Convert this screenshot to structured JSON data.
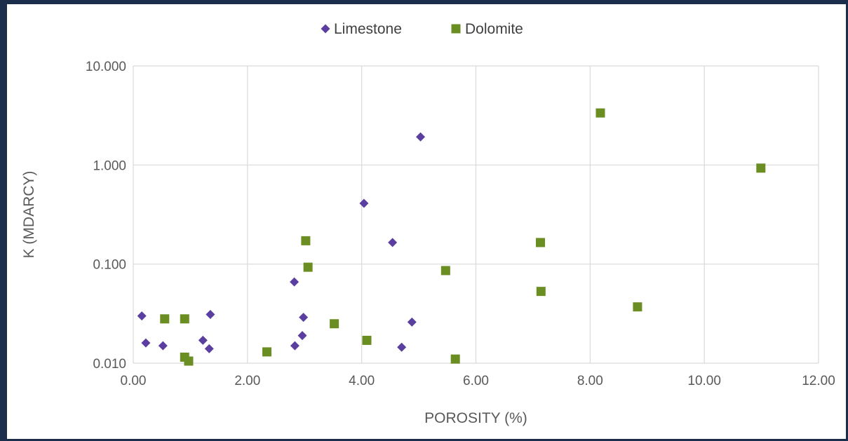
{
  "chart_data": {
    "type": "scatter",
    "title": "",
    "xlabel": "POROSITY (%)",
    "ylabel": "K (MDARCY)",
    "xlim": [
      0,
      12
    ],
    "ylim": [
      0.01,
      10
    ],
    "yscale": "log",
    "grid": true,
    "legend_position": "top",
    "x_ticks": [
      "0.00",
      "2.00",
      "4.00",
      "6.00",
      "8.00",
      "10.00",
      "12.00"
    ],
    "y_ticks": [
      "0.010",
      "0.100",
      "1.000",
      "10.000"
    ],
    "y_tick_values": [
      0.01,
      0.1,
      1,
      10
    ],
    "series": [
      {
        "name": "Limestone",
        "marker": "diamond",
        "color": "#5b3fa0",
        "points": [
          [
            0.15,
            0.03
          ],
          [
            0.22,
            0.016
          ],
          [
            0.52,
            0.015
          ],
          [
            1.22,
            0.017
          ],
          [
            1.33,
            0.014
          ],
          [
            1.35,
            0.031
          ],
          [
            2.82,
            0.066
          ],
          [
            2.83,
            0.015
          ],
          [
            2.96,
            0.019
          ],
          [
            2.98,
            0.029
          ],
          [
            4.04,
            0.41
          ],
          [
            4.54,
            0.165
          ],
          [
            4.7,
            0.0145
          ],
          [
            4.88,
            0.026
          ],
          [
            5.03,
            1.92
          ]
        ]
      },
      {
        "name": "Dolomite",
        "marker": "square",
        "color": "#6b8e23",
        "points": [
          [
            0.55,
            0.028
          ],
          [
            0.9,
            0.028
          ],
          [
            0.9,
            0.0115
          ],
          [
            0.97,
            0.0105
          ],
          [
            2.34,
            0.013
          ],
          [
            3.02,
            0.172
          ],
          [
            3.06,
            0.093
          ],
          [
            3.52,
            0.025
          ],
          [
            4.09,
            0.017
          ],
          [
            5.47,
            0.086
          ],
          [
            5.64,
            0.011
          ],
          [
            7.13,
            0.165
          ],
          [
            7.14,
            0.053
          ],
          [
            8.18,
            3.35
          ],
          [
            8.83,
            0.037
          ],
          [
            10.99,
            0.93
          ]
        ]
      }
    ]
  }
}
